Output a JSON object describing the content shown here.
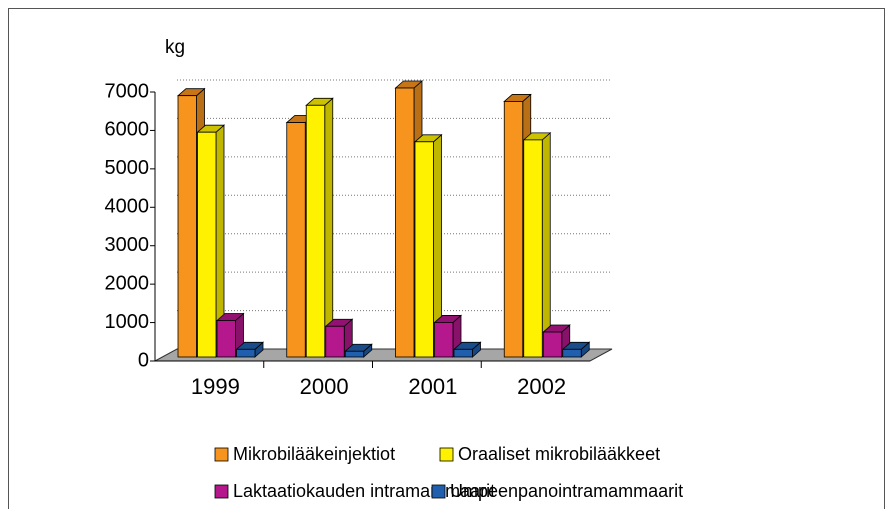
{
  "chart_data": {
    "type": "bar3d",
    "y_label": "kg",
    "categories": [
      "1999",
      "2000",
      "2001",
      "2002"
    ],
    "series": [
      {
        "name": "Mikrobilääkeinjektiot",
        "color": "#f7941d",
        "values": [
          6800,
          6100,
          7000,
          6650
        ]
      },
      {
        "name": "Oraaliset mikrobilääkkeet",
        "color": "#fff200",
        "values": [
          5850,
          6550,
          5600,
          5650
        ]
      },
      {
        "name": "Laktaatiokauden intramammaarit",
        "color": "#b5178d",
        "values": [
          950,
          800,
          900,
          650
        ]
      },
      {
        "name": "Umpeenpanointramammaarit",
        "color": "#1f5fae",
        "values": [
          200,
          150,
          200,
          200
        ]
      }
    ],
    "ylim": [
      0,
      7000
    ],
    "yticks": [
      0,
      1000,
      2000,
      3000,
      4000,
      5000,
      6000,
      7000
    ],
    "grid": true
  }
}
